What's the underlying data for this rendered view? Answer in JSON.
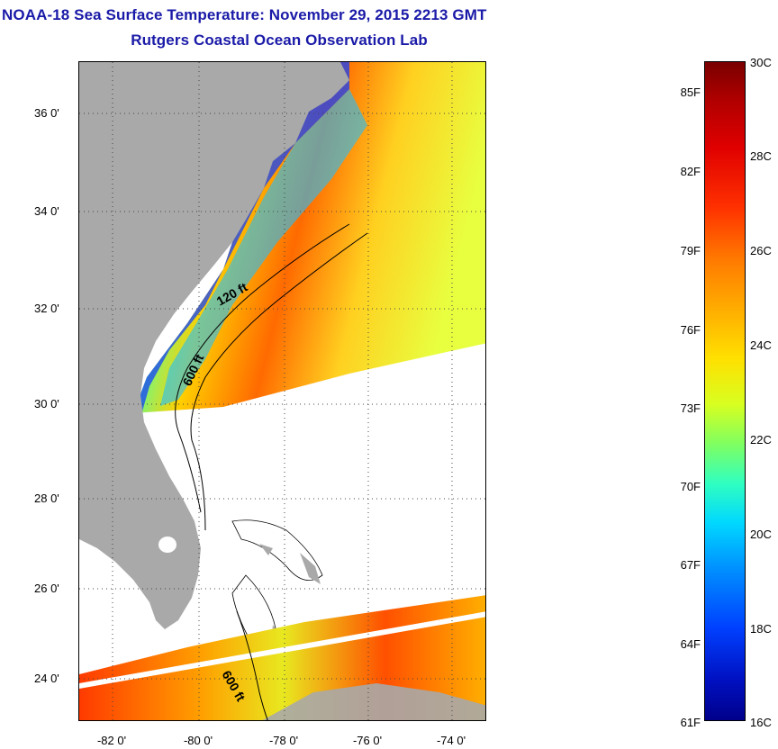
{
  "header": {
    "title": "NOAA-18 Sea Surface Temperature:  November 29, 2015 2213 GMT",
    "subtitle": "Rutgers Coastal Ocean Observation Lab"
  },
  "map": {
    "lat_labels": [
      "36 0'",
      "34 0'",
      "32 0'",
      "30 0'",
      "28 0'",
      "26 0'",
      "24 0'"
    ],
    "lon_labels": [
      "-82 0'",
      "-80 0'",
      "-78 0'",
      "-76 0'",
      "-74 0'"
    ],
    "contour_labels": [
      "120 ft",
      "600 ft",
      "600 ft"
    ],
    "colors": {
      "land": "#a9a9a9",
      "grid": "#444444",
      "title": "#1a1aa8"
    }
  },
  "colorbar": {
    "fahrenheit_labels": [
      "85F",
      "82F",
      "79F",
      "76F",
      "73F",
      "70F",
      "67F",
      "64F",
      "61F"
    ],
    "celsius_labels": [
      "30C",
      "28C",
      "26C",
      "24C",
      "22C",
      "20C",
      "18C",
      "16C"
    ]
  }
}
